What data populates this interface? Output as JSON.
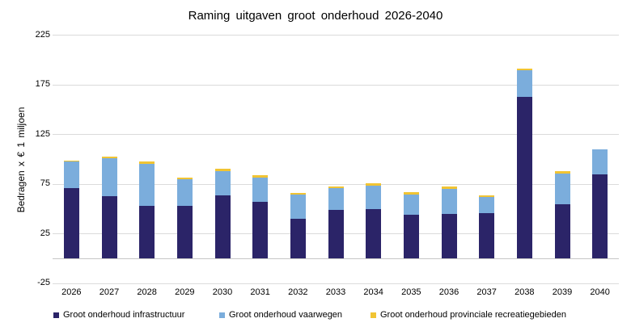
{
  "chart_data": {
    "type": "bar",
    "stacked": true,
    "title": "Raming uitgaven groot onderhoud 2026-2040",
    "ylabel": "Bedragen x € 1 miljoen",
    "xlabel": "",
    "categories": [
      "2026",
      "2027",
      "2028",
      "2029",
      "2030",
      "2031",
      "2032",
      "2033",
      "2034",
      "2035",
      "2036",
      "2037",
      "2038",
      "2039",
      "2040"
    ],
    "series": [
      {
        "id": "infrastructuur",
        "name": "Groot onderhoud infrastructuur",
        "color": "#2b2468",
        "values": [
          71,
          63,
          53,
          53,
          64,
          57,
          40,
          49,
          50,
          44,
          45,
          46,
          163,
          55,
          85
        ]
      },
      {
        "id": "vaarwegen",
        "name": "Groot onderhoud vaarwegen",
        "color": "#7baddc",
        "values": [
          27,
          38,
          43,
          27,
          24,
          25,
          25,
          22,
          24,
          21,
          25,
          16,
          27,
          31,
          25
        ]
      },
      {
        "id": "recreatiegebieden",
        "name": "Groot onderhoud provinciale recreatiegebieden",
        "color": "#f1c433",
        "values": [
          1,
          2,
          2,
          1.5,
          2.5,
          2,
          1.5,
          2,
          2,
          2,
          2.5,
          2,
          1.5,
          2.5,
          0
        ]
      }
    ],
    "yticks": [
      225,
      175,
      125,
      75,
      25,
      -25
    ],
    "ylim": [
      -25,
      235
    ],
    "grid": true,
    "legend_position": "bottom"
  }
}
